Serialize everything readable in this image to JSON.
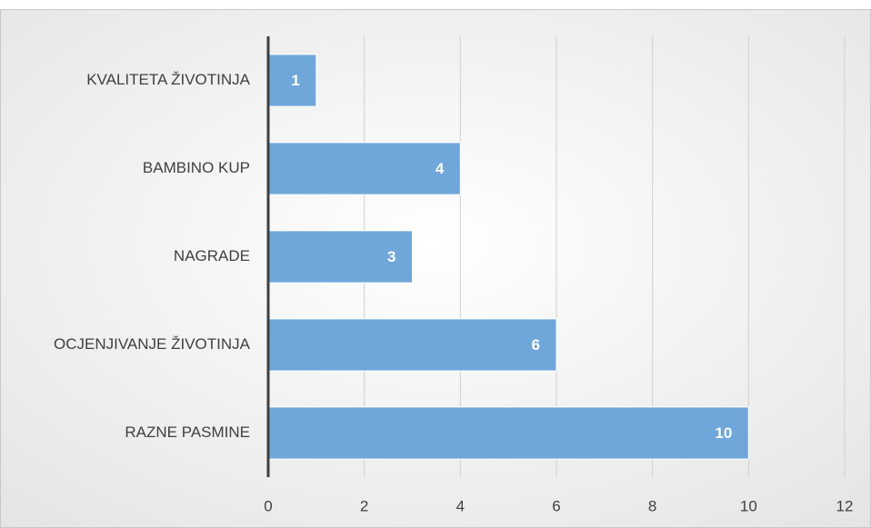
{
  "chart_data": {
    "type": "bar",
    "orientation": "horizontal",
    "categories": [
      "KVALITETA ŽIVOTINJA",
      "BAMBINO KUP",
      "NAGRADE",
      "OCJENJIVANJE ŽIVOTINJA",
      "RAZNE PASMINE"
    ],
    "values": [
      1,
      4,
      3,
      6,
      10
    ],
    "color": "#6fa7db",
    "xlim": [
      0,
      12
    ],
    "xticks": [
      0,
      2,
      4,
      6,
      8,
      10,
      12
    ],
    "grid": true
  }
}
